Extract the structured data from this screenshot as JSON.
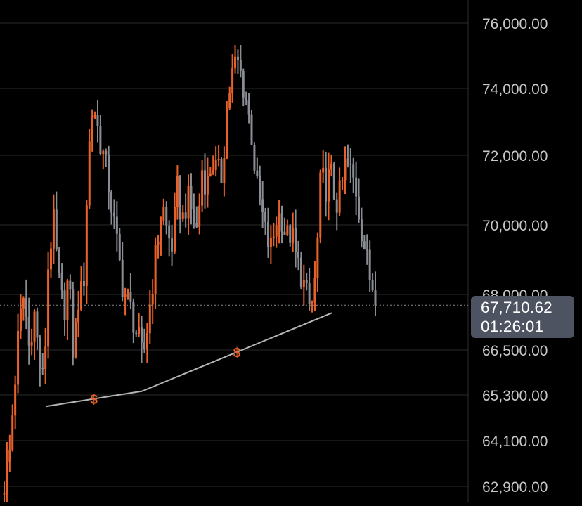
{
  "colors": {
    "background": "#000000",
    "up": "#e8622a",
    "down": "#8a8d93",
    "grid": "#2a2a2c",
    "axis_text": "#c8c8c8",
    "trendline": "#b5b5b5",
    "marker": "#e8622a",
    "current_price_box": "#4e5361"
  },
  "current_price": {
    "value": "67,710.62",
    "countdown": "01:26:01"
  },
  "trend_markers": [
    "$",
    "$"
  ],
  "chart_data": {
    "type": "ohlc",
    "y_scale": "piecewise",
    "y_ticks": [
      {
        "value": 76000,
        "label": "76,000.00"
      },
      {
        "value": 74000,
        "label": "74,000.00"
      },
      {
        "value": 72000,
        "label": "72,000.00"
      },
      {
        "value": 70000,
        "label": "70,000.00"
      },
      {
        "value": 68000,
        "label": "68,000.00"
      },
      {
        "value": 66500,
        "label": "66,500.00"
      },
      {
        "value": 65300,
        "label": "65,300.00"
      },
      {
        "value": 64100,
        "label": "64,100.00"
      },
      {
        "value": 62900,
        "label": "62,900.00"
      }
    ],
    "grid": true,
    "last_price": 67710.62,
    "trendline": [
      {
        "bar": 9,
        "price": 65000
      },
      {
        "bar": 44,
        "price": 65400
      },
      {
        "bar": 113,
        "price": 67500
      }
    ],
    "anchor_prices": [
      63000,
      63600,
      65400,
      67100,
      68000,
      66600,
      67600,
      66300,
      65500,
      69200,
      70000,
      68400,
      67500,
      68500,
      66300,
      67900,
      68100,
      72000,
      73600,
      72700,
      72000,
      71300,
      70200,
      69200,
      68200,
      67800,
      67400,
      66800,
      66200,
      67200,
      68400,
      69600,
      70600,
      69700,
      69400,
      71000,
      70100,
      70800,
      70300,
      69800,
      71600,
      71100,
      71900,
      71500,
      71400,
      73400,
      74400,
      74900,
      74300,
      73600,
      72600,
      71100,
      70400,
      69600,
      69300,
      70200,
      70300,
      69600,
      69800,
      69000,
      68600,
      68000,
      67500,
      68600,
      71400,
      71100,
      71500,
      70600,
      70900,
      71800,
      71500,
      71100,
      70100,
      69200,
      68400,
      68200
    ]
  }
}
